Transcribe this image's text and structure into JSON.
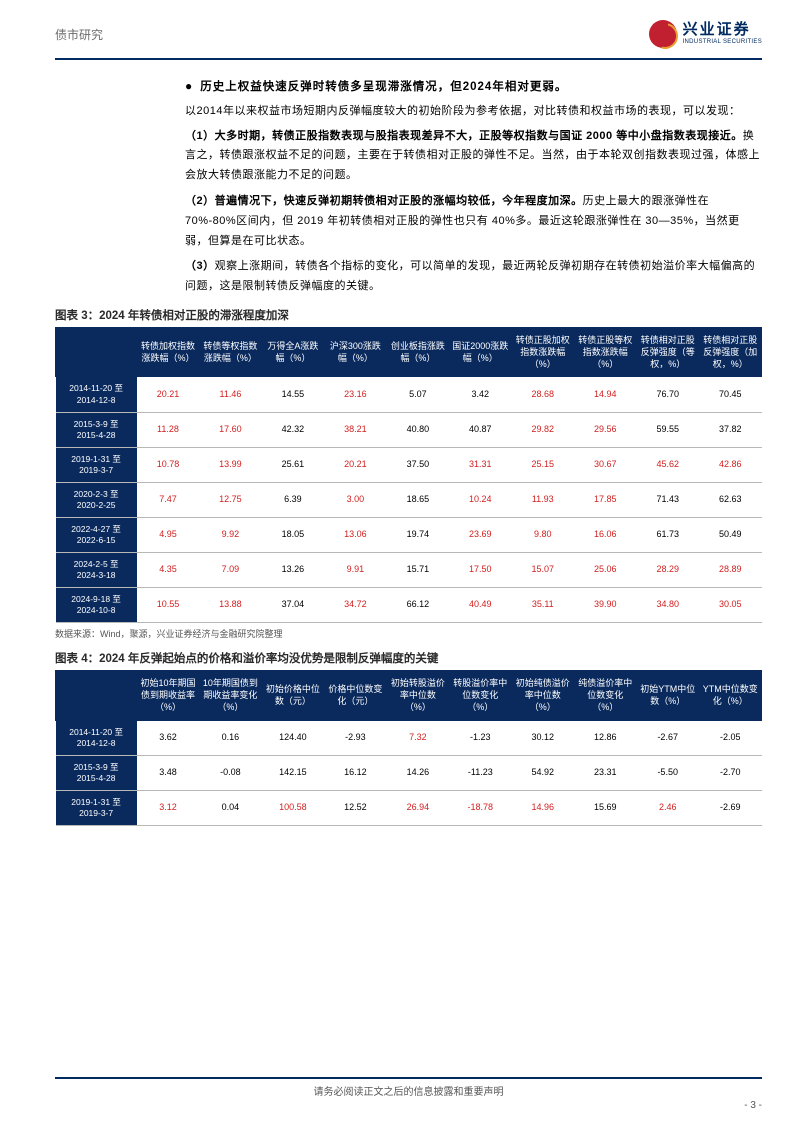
{
  "header": {
    "section_label": "债市研究",
    "company_cn": "兴业证券",
    "company_en": "INDUSTRIAL SECURITIES"
  },
  "intro": {
    "bullet": "历史上权益快速反弹时转债多呈现滞涨情况，但2024年相对更弱。",
    "para1": "以2014年以来权益市场短期内反弹幅度较大的初始阶段为参考依据，对比转债和权益市场的表现，可以发现：",
    "items": [
      {
        "num": "（1）",
        "lead": "大多时期，转债正股指数表现与股指表现差异不大，正股等权指数与国证 2000 等中小盘指数表现接近。",
        "rest": "换言之，转债跟涨权益不足的问题，主要在于转债相对正股的弹性不足。当然，由于本轮双创指数表现过强，体感上会放大转债跟涨能力不足的问题。"
      },
      {
        "num": "（2）",
        "lead": "普遍情况下，快速反弹初期转债相对正股的涨幅均较低，今年程度加深。",
        "rest": "历史上最大的跟涨弹性在 70%-80%区间内，但 2019 年初转债相对正股的弹性也只有 40%多。最近这轮跟涨弹性在 30—35%，当然更弱，但算是在可比状态。"
      },
      {
        "num": "（3）",
        "lead": "",
        "rest": "观察上涨期间，转债各个指标的变化，可以简单的发现，最近两轮反弹初期存在转债初始溢价率大幅偏高的问题，这是限制转债反弹幅度的关键。"
      }
    ]
  },
  "table3": {
    "title": "图表 3：2024 年转债相对正股的滞涨程度加深",
    "headers": [
      "",
      "转债加权指数涨跌幅（%）",
      "转债等权指数涨跌幅（%）",
      "万得全A涨跌幅（%）",
      "沪深300涨跌幅（%）",
      "创业板指涨跌幅（%）",
      "国证2000涨跌幅（%）",
      "转债正股加权指数涨跌幅（%）",
      "转债正股等权指数涨跌幅（%）",
      "转债相对正股反弹强度（等权，%）",
      "转债相对正股反弹强度（加权，%）"
    ],
    "rows": [
      {
        "label": [
          "2014-11-20 至",
          "2014-12-8"
        ],
        "cells": [
          {
            "v": "20.21",
            "r": 1
          },
          {
            "v": "11.46",
            "r": 1
          },
          {
            "v": "14.55",
            "r": 0
          },
          {
            "v": "23.16",
            "r": 1
          },
          {
            "v": "5.07",
            "r": 0
          },
          {
            "v": "3.42",
            "r": 0
          },
          {
            "v": "28.68",
            "r": 1
          },
          {
            "v": "14.94",
            "r": 1
          },
          {
            "v": "76.70",
            "r": 0
          },
          {
            "v": "70.45",
            "r": 0
          }
        ]
      },
      {
        "label": [
          "2015-3-9 至",
          "2015-4-28"
        ],
        "cells": [
          {
            "v": "11.28",
            "r": 1
          },
          {
            "v": "17.60",
            "r": 1
          },
          {
            "v": "42.32",
            "r": 0
          },
          {
            "v": "38.21",
            "r": 1
          },
          {
            "v": "40.80",
            "r": 0
          },
          {
            "v": "40.87",
            "r": 0
          },
          {
            "v": "29.82",
            "r": 1
          },
          {
            "v": "29.56",
            "r": 1
          },
          {
            "v": "59.55",
            "r": 0
          },
          {
            "v": "37.82",
            "r": 0
          }
        ]
      },
      {
        "label": [
          "2019-1-31 至",
          "2019-3-7"
        ],
        "cells": [
          {
            "v": "10.78",
            "r": 1
          },
          {
            "v": "13.99",
            "r": 1
          },
          {
            "v": "25.61",
            "r": 0
          },
          {
            "v": "20.21",
            "r": 1
          },
          {
            "v": "37.50",
            "r": 0
          },
          {
            "v": "31.31",
            "r": 1
          },
          {
            "v": "25.15",
            "r": 1
          },
          {
            "v": "30.67",
            "r": 1
          },
          {
            "v": "45.62",
            "r": 1
          },
          {
            "v": "42.86",
            "r": 1
          }
        ]
      },
      {
        "label": [
          "2020-2-3 至",
          "2020-2-25"
        ],
        "cells": [
          {
            "v": "7.47",
            "r": 1
          },
          {
            "v": "12.75",
            "r": 1
          },
          {
            "v": "6.39",
            "r": 0
          },
          {
            "v": "3.00",
            "r": 1
          },
          {
            "v": "18.65",
            "r": 0
          },
          {
            "v": "10.24",
            "r": 1
          },
          {
            "v": "11.93",
            "r": 1
          },
          {
            "v": "17.85",
            "r": 1
          },
          {
            "v": "71.43",
            "r": 0
          },
          {
            "v": "62.63",
            "r": 0
          }
        ]
      },
      {
        "label": [
          "2022-4-27 至",
          "2022-6-15"
        ],
        "cells": [
          {
            "v": "4.95",
            "r": 1
          },
          {
            "v": "9.92",
            "r": 1
          },
          {
            "v": "18.05",
            "r": 0
          },
          {
            "v": "13.06",
            "r": 1
          },
          {
            "v": "19.74",
            "r": 0
          },
          {
            "v": "23.69",
            "r": 1
          },
          {
            "v": "9.80",
            "r": 1
          },
          {
            "v": "16.06",
            "r": 1
          },
          {
            "v": "61.73",
            "r": 0
          },
          {
            "v": "50.49",
            "r": 0
          }
        ]
      },
      {
        "label": [
          "2024-2-5 至",
          "2024-3-18"
        ],
        "cells": [
          {
            "v": "4.35",
            "r": 1
          },
          {
            "v": "7.09",
            "r": 1
          },
          {
            "v": "13.26",
            "r": 0
          },
          {
            "v": "9.91",
            "r": 1
          },
          {
            "v": "15.71",
            "r": 0
          },
          {
            "v": "17.50",
            "r": 1
          },
          {
            "v": "15.07",
            "r": 1
          },
          {
            "v": "25.06",
            "r": 1
          },
          {
            "v": "28.29",
            "r": 1
          },
          {
            "v": "28.89",
            "r": 1
          }
        ]
      },
      {
        "label": [
          "2024-9-18 至",
          "2024-10-8"
        ],
        "cells": [
          {
            "v": "10.55",
            "r": 1
          },
          {
            "v": "13.88",
            "r": 1
          },
          {
            "v": "37.04",
            "r": 0
          },
          {
            "v": "34.72",
            "r": 1
          },
          {
            "v": "66.12",
            "r": 0
          },
          {
            "v": "40.49",
            "r": 1
          },
          {
            "v": "35.11",
            "r": 1
          },
          {
            "v": "39.90",
            "r": 1
          },
          {
            "v": "34.80",
            "r": 1
          },
          {
            "v": "30.05",
            "r": 1
          }
        ]
      }
    ],
    "source": "数据来源：Wind，聚源，兴业证券经济与金融研究院整理"
  },
  "table4": {
    "title": "图表 4：2024 年反弹起始点的价格和溢价率均没优势是限制反弹幅度的关键",
    "headers": [
      "",
      "初始10年期国债到期收益率（%）",
      "10年期国债到期收益率变化（%）",
      "初始价格中位数（元）",
      "价格中位数变化（元）",
      "初始转股溢价率中位数（%）",
      "转股溢价率中位数变化（%）",
      "初始纯债溢价率中位数（%）",
      "纯债溢价率中位数变化（%）",
      "初始YTM中位数（%）",
      "YTM中位数变化（%）"
    ],
    "rows": [
      {
        "label": [
          "2014-11-20 至",
          "2014-12-8"
        ],
        "cells": [
          {
            "v": "3.62",
            "r": 0
          },
          {
            "v": "0.16",
            "r": 0
          },
          {
            "v": "124.40",
            "r": 0
          },
          {
            "v": "-2.93",
            "r": 0
          },
          {
            "v": "7.32",
            "r": 1
          },
          {
            "v": "-1.23",
            "r": 0
          },
          {
            "v": "30.12",
            "r": 0
          },
          {
            "v": "12.86",
            "r": 0
          },
          {
            "v": "-2.67",
            "r": 0
          },
          {
            "v": "-2.05",
            "r": 0
          }
        ]
      },
      {
        "label": [
          "2015-3-9 至",
          "2015-4-28"
        ],
        "cells": [
          {
            "v": "3.48",
            "r": 0
          },
          {
            "v": "-0.08",
            "r": 0
          },
          {
            "v": "142.15",
            "r": 0
          },
          {
            "v": "16.12",
            "r": 0
          },
          {
            "v": "14.26",
            "r": 0
          },
          {
            "v": "-11.23",
            "r": 0
          },
          {
            "v": "54.92",
            "r": 0
          },
          {
            "v": "23.31",
            "r": 0
          },
          {
            "v": "-5.50",
            "r": 0
          },
          {
            "v": "-2.70",
            "r": 0
          }
        ]
      },
      {
        "label": [
          "2019-1-31 至",
          "2019-3-7"
        ],
        "cells": [
          {
            "v": "3.12",
            "r": 1
          },
          {
            "v": "0.04",
            "r": 0
          },
          {
            "v": "100.58",
            "r": 1
          },
          {
            "v": "12.52",
            "r": 0
          },
          {
            "v": "26.94",
            "r": 1
          },
          {
            "v": "-18.78",
            "r": 1
          },
          {
            "v": "14.96",
            "r": 1
          },
          {
            "v": "15.69",
            "r": 0
          },
          {
            "v": "2.46",
            "r": 1
          },
          {
            "v": "-2.69",
            "r": 0
          }
        ]
      }
    ]
  },
  "footer": {
    "notice": "请务必阅读正文之后的信息披露和重要声明",
    "page": "- 3 -"
  },
  "colors": {
    "navy": "#0a2a5e",
    "red": "#d21f1f",
    "header_blue": "#002a60"
  }
}
